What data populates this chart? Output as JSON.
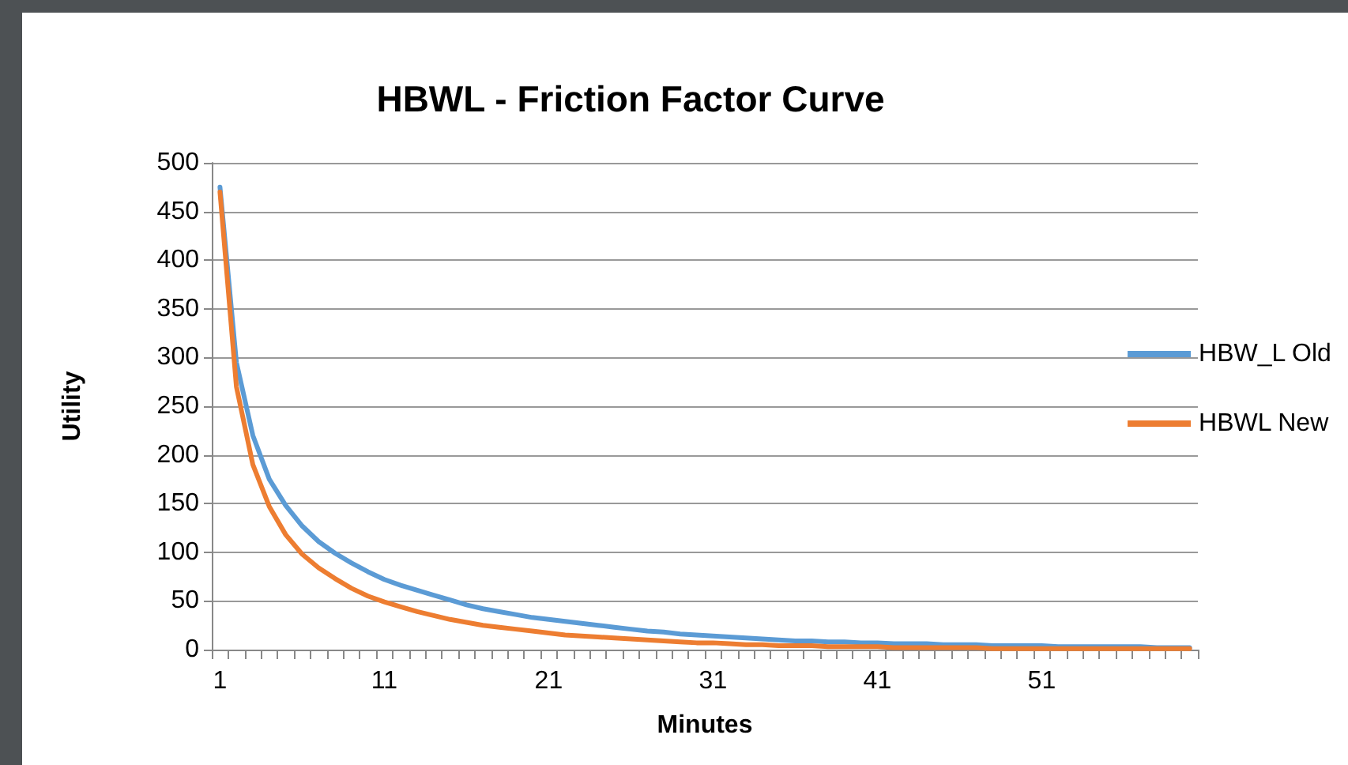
{
  "chart_data": {
    "type": "line",
    "title": "HBWL - Friction Factor Curve",
    "xlabel": "Minutes",
    "ylabel": "Utility",
    "categories": [
      "1",
      null,
      null,
      null,
      null,
      null,
      null,
      null,
      null,
      null,
      "11",
      null,
      null,
      null,
      null,
      null,
      null,
      null,
      null,
      null,
      "21",
      null,
      null,
      null,
      null,
      null,
      null,
      null,
      null,
      null,
      "31",
      null,
      null,
      null,
      null,
      null,
      null,
      null,
      null,
      null,
      "41",
      null,
      null,
      null,
      null,
      null,
      null,
      null,
      null,
      null,
      "51",
      null,
      null,
      null,
      null,
      null,
      null,
      null,
      null,
      null
    ],
    "series": [
      {
        "name": "HBW_L Old",
        "color": "#5b9bd5",
        "values": [
          475,
          295,
          220,
          175,
          148,
          127,
          111,
          99,
          89,
          80,
          72,
          66,
          61,
          56,
          51,
          46,
          42,
          39,
          36,
          33,
          31,
          29,
          27,
          25,
          23,
          21,
          19,
          18,
          16,
          15,
          14,
          13,
          12,
          11,
          10,
          9,
          9,
          8,
          8,
          7,
          7,
          6,
          6,
          6,
          5,
          5,
          5,
          4,
          4,
          4,
          4,
          3,
          3,
          3,
          3,
          3,
          3,
          2,
          2,
          2
        ]
      },
      {
        "name": "HBWL New",
        "color": "#ed7d31",
        "values": [
          470,
          270,
          190,
          147,
          118,
          98,
          84,
          73,
          63,
          55,
          49,
          44,
          39,
          35,
          31,
          28,
          25,
          23,
          21,
          19,
          17,
          15,
          14,
          13,
          12,
          11,
          10,
          9,
          8,
          7,
          7,
          6,
          5,
          5,
          4,
          4,
          4,
          3,
          3,
          3,
          3,
          2,
          2,
          2,
          2,
          2,
          2,
          1,
          1,
          1,
          1,
          1,
          1,
          1,
          1,
          1,
          1,
          1,
          1,
          1
        ]
      }
    ],
    "ylim": [
      0,
      500
    ],
    "yticks": [
      0,
      50,
      100,
      150,
      200,
      250,
      300,
      350,
      400,
      450,
      500
    ],
    "grid": "y",
    "legend": "right",
    "marker": "none",
    "line_style": "solid"
  }
}
